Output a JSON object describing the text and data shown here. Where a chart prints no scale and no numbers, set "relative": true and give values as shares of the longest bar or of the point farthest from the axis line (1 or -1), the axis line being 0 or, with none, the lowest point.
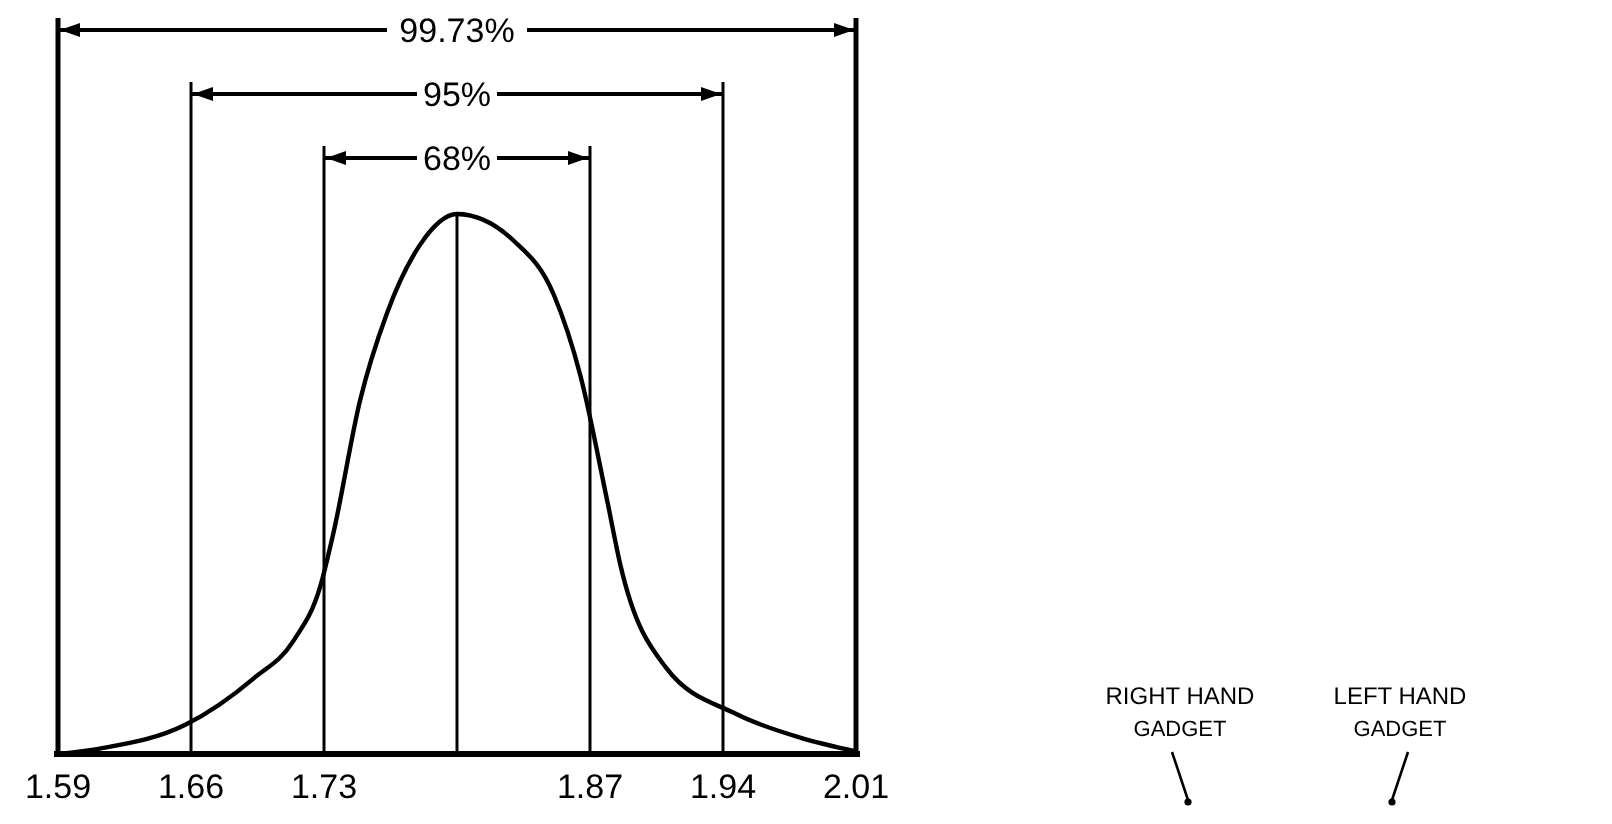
{
  "chart_data": {
    "type": "line",
    "relative": true,
    "xlim": [
      1.59,
      2.01
    ],
    "xticks": [
      1.59,
      1.66,
      1.73,
      {
        "value": 1.8,
        "label": null
      },
      1.87,
      1.94,
      2.01
    ],
    "series": [
      {
        "color": "#000000",
        "x": [
          1.59,
          1.612,
          1.657,
          1.693,
          1.714,
          1.728,
          1.735,
          1.749,
          1.763,
          1.78,
          1.8,
          1.83,
          1.851,
          1.865,
          1.879,
          1.886,
          1.91,
          1.947,
          1.981,
          2.01
        ],
        "values": [
          0,
          0.01,
          0.054,
          0.14,
          0.21,
          0.31,
          0.41,
          0.655,
          0.815,
          0.94,
          1,
          0.95,
          0.85,
          0.7,
          0.47,
          0.35,
          0.16,
          0.074,
          0.03,
          0.005
        ]
      }
    ],
    "annotations": [
      "99.73%",
      "95%",
      "68%",
      "RIGHT HAND GADGET",
      "LEFT HAND GADGET"
    ],
    "marker": "none",
    "line_style": "solid",
    "grid": "x",
    "legend": false
  }
}
